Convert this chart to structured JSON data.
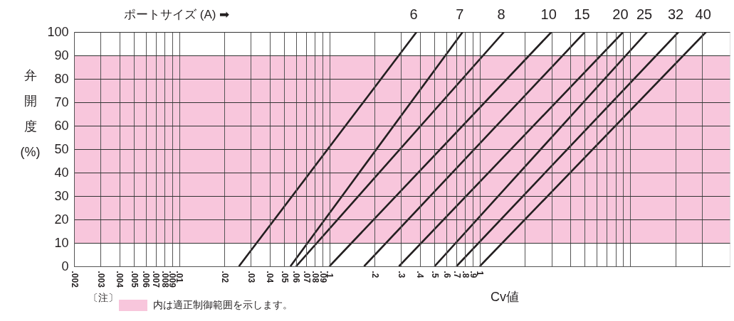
{
  "chart_data": {
    "type": "line",
    "xlabel": "Cv値",
    "ylabel": "弁開度(%)",
    "log": "x",
    "grid": true,
    "legend": "bottom left",
    "marker": "none",
    "line_style": "solid",
    "xlim": [
      0.002,
      46
    ],
    "ylim": [
      0,
      100
    ],
    "xticks": [
      {
        "value": 0.002,
        "label": ".002"
      },
      {
        "value": 0.003,
        "label": ".003"
      },
      {
        "value": 0.004,
        "label": ".004"
      },
      {
        "value": 0.005,
        "label": ".005"
      },
      {
        "value": 0.006,
        "label": ".006"
      },
      {
        "value": 0.007,
        "label": ".007"
      },
      {
        "value": 0.008,
        "label": ".008"
      },
      {
        "value": 0.009,
        "label": ".009"
      },
      {
        "value": 0.01,
        "label": ".01"
      },
      {
        "value": 0.02,
        "label": ".02"
      },
      {
        "value": 0.03,
        "label": ".03"
      },
      {
        "value": 0.04,
        "label": ".04"
      },
      {
        "value": 0.05,
        "label": ".05"
      },
      {
        "value": 0.06,
        "label": ".06"
      },
      {
        "value": 0.07,
        "label": ".07"
      },
      {
        "value": 0.08,
        "label": ".08"
      },
      {
        "value": 0.09,
        "label": ".09"
      },
      {
        "value": 0.1,
        "label": ".1"
      },
      {
        "value": 0.2,
        "label": ".2"
      },
      {
        "value": 0.3,
        "label": ".3"
      },
      {
        "value": 0.4,
        "label": ".4"
      },
      {
        "value": 0.5,
        "label": ".5"
      },
      {
        "value": 0.6,
        "label": ".6"
      },
      {
        "value": 0.7,
        "label": ".7"
      },
      {
        "value": 0.8,
        "label": ".8"
      },
      {
        "value": 0.9,
        "label": ".9"
      },
      1,
      {
        "value": 2,
        "label": null
      },
      {
        "value": 3,
        "label": null
      },
      {
        "value": 4,
        "label": null
      },
      {
        "value": 5,
        "label": null
      },
      {
        "value": 6,
        "label": null
      },
      {
        "value": 7,
        "label": null
      },
      {
        "value": 8,
        "label": null
      },
      {
        "value": 9,
        "label": null
      },
      {
        "value": 10,
        "label": null
      },
      {
        "value": 20,
        "label": null
      },
      {
        "value": 30,
        "label": null
      }
    ],
    "yticks": [
      0,
      10,
      20,
      30,
      40,
      50,
      60,
      70,
      80,
      90,
      100
    ],
    "bands": [
      {
        "axis": "y",
        "from": 10,
        "to": 90,
        "color": "#f8c6dc",
        "label": "内は適正制御範囲を示します。"
      }
    ],
    "annotations": [
      "ポートサイズ (A) ➡",
      "〔注〕"
    ],
    "series": [
      {
        "name": "6",
        "color": "#231f20",
        "x": [
          0.025,
          0.38
        ],
        "values": [
          0,
          100
        ]
      },
      {
        "name": "7",
        "color": "#231f20",
        "x": [
          0.055,
          0.77
        ],
        "values": [
          0,
          100
        ]
      },
      {
        "name": "8",
        "color": "#231f20",
        "x": [
          0.06,
          1.45
        ],
        "values": [
          0,
          100
        ]
      },
      {
        "name": "10",
        "color": "#231f20",
        "x": [
          0.1,
          3
        ],
        "values": [
          0,
          100
        ]
      },
      {
        "name": "15",
        "color": "#231f20",
        "x": [
          0.17,
          5
        ],
        "values": [
          0,
          100
        ]
      },
      {
        "name": "20",
        "color": "#231f20",
        "x": [
          0.29,
          9
        ],
        "values": [
          0,
          100
        ]
      },
      {
        "name": "25",
        "color": "#231f20",
        "x": [
          0.5,
          13
        ],
        "values": [
          0,
          100
        ]
      },
      {
        "name": "32",
        "color": "#231f20",
        "x": [
          0.7,
          21
        ],
        "values": [
          0,
          100
        ]
      },
      {
        "name": "40",
        "color": "#231f20",
        "x": [
          1.0,
          32
        ],
        "values": [
          0,
          100
        ]
      }
    ]
  }
}
